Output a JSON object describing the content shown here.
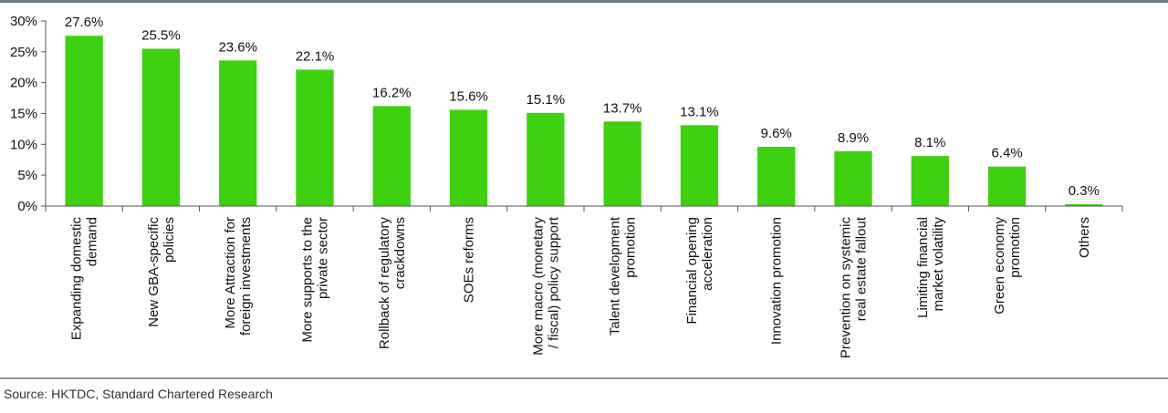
{
  "chart_data": {
    "type": "bar",
    "title": "",
    "xlabel": "",
    "ylabel": "",
    "ylim": [
      0,
      30
    ],
    "yticks": [
      "0%",
      "5%",
      "10%",
      "15%",
      "20%",
      "25%",
      "30%"
    ],
    "categories": [
      [
        "Expanding domestic",
        "demand"
      ],
      [
        "New GBA-specific",
        "policies"
      ],
      [
        "More Attraction for",
        "foreign investments"
      ],
      [
        "More supports to the",
        "private sector"
      ],
      [
        "Rollback of regulatory",
        "crackdowns"
      ],
      [
        "SOEs reforms"
      ],
      [
        "More macro (monetary",
        "/ fiscal) policy support"
      ],
      [
        "Talent development",
        "promotion"
      ],
      [
        "Financial opening",
        "acceleration"
      ],
      [
        "Innovation promotion"
      ],
      [
        "Prevention on systemic",
        "real estate fallout"
      ],
      [
        "Limiting financial",
        "market volatility"
      ],
      [
        "Green economy",
        "promotion"
      ],
      [
        "Others"
      ]
    ],
    "values": [
      27.6,
      25.5,
      23.6,
      22.1,
      16.2,
      15.6,
      15.1,
      13.7,
      13.1,
      9.6,
      8.9,
      8.1,
      6.4,
      0.3
    ],
    "data_labels": [
      "27.6%",
      "25.5%",
      "23.6%",
      "22.1%",
      "16.2%",
      "15.6%",
      "15.1%",
      "13.7%",
      "13.1%",
      "9.6%",
      "8.9%",
      "8.1%",
      "6.4%",
      "0.3%"
    ],
    "bar_color": "#3ed10f",
    "grid": false,
    "legend": "none"
  },
  "source": "Source: HKTDC, Standard Chartered Research"
}
